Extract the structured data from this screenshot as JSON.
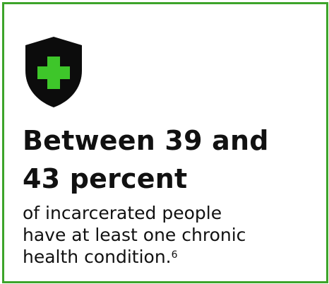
{
  "card": {
    "border_color": "#3da42a"
  },
  "icon": {
    "name": "shield-plus-icon",
    "shield_color": "#0c0c0c",
    "cross_color": "#3ec62a"
  },
  "headline": {
    "line1": "Between 39 and",
    "line2": "43 percent"
  },
  "body": {
    "line1": "of incarcerated people",
    "line2": "have at least one chronic",
    "line3": "health condition.",
    "footnote": "6"
  }
}
